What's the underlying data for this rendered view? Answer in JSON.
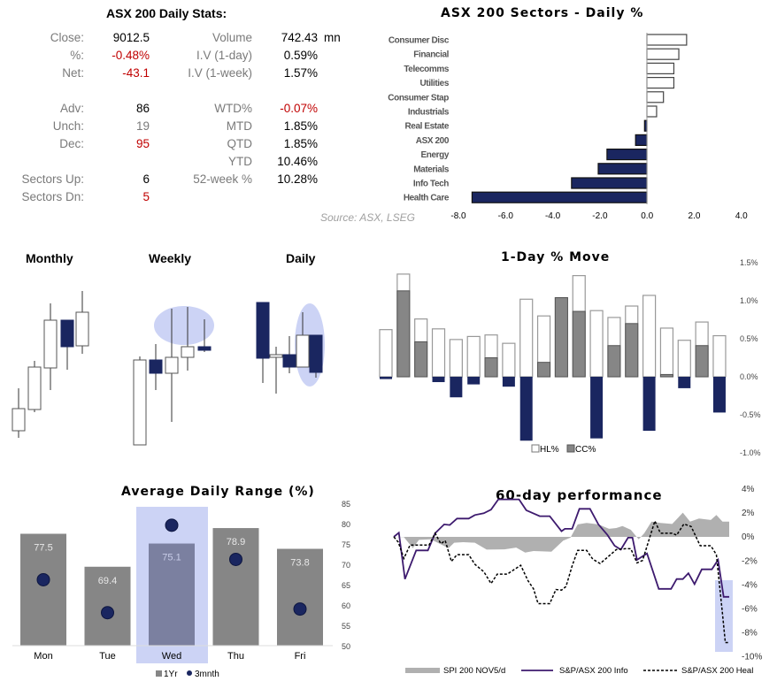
{
  "colors": {
    "navy": "#1a2660",
    "grey": "#868686",
    "highlight": "#ccd3f5",
    "red": "#c00000",
    "purple": "#3d1a6e"
  },
  "stats": {
    "title": "ASX 200 Daily Stats:",
    "left": [
      {
        "label": "Close:",
        "value": "9012.5",
        "color": "black"
      },
      {
        "label": "%:",
        "value": "-0.48%",
        "color": "red"
      },
      {
        "label": "Net:",
        "value": "-43.1",
        "color": "red"
      },
      {
        "label": "Adv:",
        "value": "86",
        "color": "black"
      },
      {
        "label": "Unch:",
        "value": "19",
        "color": "grey"
      },
      {
        "label": "Dec:",
        "value": "95",
        "color": "red"
      },
      {
        "label": "Sectors Up:",
        "value": "6",
        "color": "black"
      },
      {
        "label": "Sectors Dn:",
        "value": "5",
        "color": "red"
      }
    ],
    "right": [
      {
        "label": "Volume",
        "value": "742.43",
        "unit": "mn",
        "color": "black"
      },
      {
        "label": "I.V (1-day)",
        "value": "0.59%",
        "color": "black"
      },
      {
        "label": "I.V (1-week)",
        "value": "1.57%",
        "color": "black"
      },
      {
        "label": "WTD%",
        "value": "-0.07%",
        "color": "red"
      },
      {
        "label": "MTD",
        "value": "1.85%",
        "color": "black"
      },
      {
        "label": "QTD",
        "value": "1.85%",
        "color": "black"
      },
      {
        "label": "YTD",
        "value": "10.46%",
        "color": "black"
      },
      {
        "label": "52-week %",
        "value": "10.28%",
        "color": "black"
      }
    ]
  },
  "candles": {
    "monthly": {
      "title": "Monthly",
      "bars": [
        {
          "o": 23,
          "h": 71,
          "l": 15,
          "c": 48
        },
        {
          "o": 47,
          "h": 102,
          "l": 44,
          "c": 95
        },
        {
          "o": 94,
          "h": 167,
          "l": 69,
          "c": 148
        },
        {
          "o": 148,
          "h": 148,
          "l": 92,
          "c": 118
        },
        {
          "o": 119,
          "h": 181,
          "l": 110,
          "c": 157
        }
      ]
    },
    "weekly": {
      "title": "Weekly",
      "bars": [
        {
          "o": 7,
          "h": 107,
          "l": 7,
          "c": 103
        },
        {
          "o": 103,
          "h": 121,
          "l": 69,
          "c": 88
        },
        {
          "o": 88,
          "h": 161,
          "l": 33,
          "c": 106
        },
        {
          "o": 106,
          "h": 163,
          "l": 91,
          "c": 118
        },
        {
          "o": 118,
          "h": 149,
          "l": 112,
          "c": 114
        }
      ]
    },
    "daily": {
      "title": "Daily",
      "bars": [
        {
          "o": 168,
          "h": 168,
          "l": 77,
          "c": 105
        },
        {
          "o": 106,
          "h": 118,
          "l": 65,
          "c": 109
        },
        {
          "o": 109,
          "h": 130,
          "l": 88,
          "c": 95
        },
        {
          "o": 95,
          "h": 157,
          "l": 95,
          "c": 131
        },
        {
          "o": 131,
          "h": 131,
          "l": 83,
          "c": 89
        }
      ]
    }
  },
  "chart_data": [
    {
      "id": "sectors",
      "type": "bar",
      "orientation": "horizontal",
      "title": "ASX 200 Sectors - Daily %",
      "categories": [
        "Consumer Disc",
        "Financial",
        "Telecomms",
        "Utilities",
        "Consumer Stap",
        "Industrials",
        "Real Estate",
        "ASX 200",
        "Energy",
        "Materials",
        "Info Tech",
        "Health Care"
      ],
      "values": [
        1.68,
        1.35,
        1.14,
        1.14,
        0.7,
        0.41,
        -0.1,
        -0.48,
        -1.69,
        -2.06,
        -3.19,
        -7.4
      ],
      "xlim": [
        -8,
        4
      ],
      "xticks": [
        "-8.0",
        "-6.0",
        "-4.0",
        "-2.0",
        "0.0",
        "2.0",
        "4.0"
      ],
      "source": "Source: ASX, LSEG"
    },
    {
      "id": "oneday",
      "type": "bar",
      "title": "1-Day % Move",
      "series": [
        {
          "name": "HL%",
          "values": [
            0.62,
            1.35,
            0.76,
            0.63,
            0.49,
            0.53,
            0.55,
            0.44,
            1.02,
            0.8,
            1.04,
            1.33,
            0.87,
            0.78,
            0.93,
            1.07,
            0.64,
            0.48,
            0.72,
            0.54
          ]
        },
        {
          "name": "CC%",
          "values": [
            -0.03,
            1.13,
            0.46,
            -0.07,
            -0.27,
            -0.1,
            0.25,
            -0.13,
            -0.84,
            0.19,
            1.04,
            0.86,
            -0.81,
            0.41,
            0.7,
            -0.71,
            0.03,
            -0.15,
            0.41,
            -0.47
          ]
        }
      ],
      "ylim": [
        -1.0,
        1.5
      ],
      "yticks": [
        "1.5%",
        "1.0%",
        "0.5%",
        "0.0%",
        "-0.5%",
        "-1.0%"
      ],
      "legend": "bottom"
    },
    {
      "id": "adr",
      "type": "bar",
      "title": "Average Daily Range (%)",
      "categories": [
        "Mon",
        "Tue",
        "Wed",
        "Thu",
        "Fri"
      ],
      "series": [
        {
          "name": "1Yr",
          "values": [
            77.5,
            69.4,
            75.1,
            78.9,
            73.8
          ],
          "labels": [
            "77.5",
            "69.4",
            "75.1",
            "78.9",
            "73.8"
          ]
        },
        {
          "name": "3mnth",
          "values": [
            66.2,
            58.1,
            79.6,
            71.2,
            59.0
          ]
        }
      ],
      "highlight": "Wed",
      "ylim": [
        50,
        85
      ],
      "yticks": [
        "85",
        "80",
        "75",
        "70",
        "65",
        "60",
        "55",
        "50"
      ],
      "legend": "bottom"
    },
    {
      "id": "perf60",
      "type": "line",
      "title": "60-day performance",
      "ylim": [
        -10,
        4
      ],
      "yticks": [
        "4%",
        "2%",
        "0%",
        "-2%",
        "-4%",
        "-6%",
        "-8%",
        "-10%"
      ],
      "legend": "bottom",
      "series": [
        {
          "name": "SPI 200 NOV5/d",
          "style": "area",
          "points": [
            [
              0,
              0
            ],
            [
              1.8,
              -0.02
            ],
            [
              3.4,
              -0.94
            ],
            [
              4.5,
              -0.25
            ],
            [
              6.6,
              -0.2
            ],
            [
              8.2,
              -0.57
            ],
            [
              9.8,
              -0.94
            ],
            [
              10.8,
              -0.49
            ],
            [
              12.4,
              -0.44
            ],
            [
              14.5,
              -0.49
            ],
            [
              16.6,
              -1.06
            ],
            [
              19.8,
              -1.04
            ],
            [
              21.9,
              -0.89
            ],
            [
              23.5,
              -1.31
            ],
            [
              25.0,
              -1.18
            ],
            [
              28.2,
              -1.23
            ],
            [
              30.3,
              -0.32
            ],
            [
              31.6,
              -0.07
            ],
            [
              32.9,
              1.04
            ],
            [
              34.5,
              1.16
            ],
            [
              36.6,
              1.04
            ],
            [
              38.5,
              0.67
            ],
            [
              39.8,
              0.74
            ],
            [
              40.9,
              0.91
            ],
            [
              42.4,
              0.59
            ],
            [
              43.8,
              -0.2
            ],
            [
              44.8,
              0.3
            ],
            [
              46.1,
              1.28
            ],
            [
              47.7,
              1.16
            ],
            [
              49.8,
              1.08
            ],
            [
              51.7,
              2.02
            ],
            [
              53.0,
              1.28
            ],
            [
              54.6,
              1.53
            ],
            [
              56.7,
              1.41
            ],
            [
              57.7,
              1.82
            ],
            [
              58.8,
              1.28
            ],
            [
              60,
              1.28
            ]
          ]
        },
        {
          "name": "S&P/ASX 200 Info",
          "style": "solid",
          "points": [
            [
              0,
              0
            ],
            [
              0.9,
              0.35
            ],
            [
              2.0,
              -3.52
            ],
            [
              4.0,
              -1.13
            ],
            [
              6.1,
              -1.13
            ],
            [
              7.4,
              0.3
            ],
            [
              9.0,
              1.04
            ],
            [
              10.0,
              0.99
            ],
            [
              11.3,
              1.53
            ],
            [
              13.4,
              1.53
            ],
            [
              14.5,
              1.82
            ],
            [
              16.1,
              1.97
            ],
            [
              17.4,
              2.27
            ],
            [
              18.7,
              3.13
            ],
            [
              22.4,
              3.13
            ],
            [
              23.7,
              2.22
            ],
            [
              26.1,
              1.73
            ],
            [
              27.9,
              1.73
            ],
            [
              30.0,
              0.47
            ],
            [
              30.6,
              0.67
            ],
            [
              31.9,
              0.67
            ],
            [
              33.2,
              2.34
            ],
            [
              35.1,
              2.34
            ],
            [
              36.6,
              1.04
            ],
            [
              38.2,
              0.17
            ],
            [
              39.5,
              -0.74
            ],
            [
              40.6,
              -1.06
            ],
            [
              41.9,
              -0.07
            ],
            [
              42.7,
              -0.07
            ],
            [
              43.5,
              -1.92
            ],
            [
              45.3,
              -1.38
            ],
            [
              47.4,
              -4.34
            ],
            [
              49.6,
              -4.34
            ],
            [
              50.6,
              -3.52
            ],
            [
              51.7,
              -3.52
            ],
            [
              52.7,
              -3.03
            ],
            [
              53.8,
              -3.94
            ],
            [
              55.1,
              -2.71
            ],
            [
              56.9,
              -2.71
            ],
            [
              58.0,
              -1.92
            ],
            [
              59.0,
              -5.0
            ],
            [
              60,
              -5.0
            ]
          ]
        },
        {
          "name": "S&P/ASX 200 Heal",
          "style": "dashed",
          "points": [
            [
              0,
              0
            ],
            [
              0.8,
              -0.44
            ],
            [
              1.8,
              -1.8
            ],
            [
              2.9,
              -0.69
            ],
            [
              6.3,
              -0.69
            ],
            [
              7.4,
              0.3
            ],
            [
              8.4,
              -0.57
            ],
            [
              9.2,
              -0.32
            ],
            [
              10.3,
              -2.05
            ],
            [
              11.3,
              -1.48
            ],
            [
              13.4,
              -1.48
            ],
            [
              14.5,
              -2.29
            ],
            [
              16.1,
              -2.91
            ],
            [
              17.4,
              -3.89
            ],
            [
              18.5,
              -3.11
            ],
            [
              20.3,
              -3.11
            ],
            [
              22.7,
              -2.37
            ],
            [
              24.0,
              -3.65
            ],
            [
              25.0,
              -4.34
            ],
            [
              25.8,
              -5.57
            ],
            [
              27.9,
              -5.57
            ],
            [
              29.0,
              -4.39
            ],
            [
              30.0,
              -4.44
            ],
            [
              30.8,
              -4.14
            ],
            [
              31.9,
              -2.42
            ],
            [
              32.9,
              -1.13
            ],
            [
              34.5,
              -1.13
            ],
            [
              35.6,
              -1.87
            ],
            [
              36.9,
              -2.22
            ],
            [
              37.7,
              -1.92
            ],
            [
              39.8,
              -1.06
            ],
            [
              41.4,
              -0.99
            ],
            [
              42.4,
              -0.99
            ],
            [
              43.5,
              -2.17
            ],
            [
              44.5,
              -1.97
            ],
            [
              46.7,
              1.33
            ],
            [
              47.7,
              0.3
            ],
            [
              49.8,
              0.3
            ],
            [
              50.6,
              0.15
            ],
            [
              51.9,
              1.08
            ],
            [
              53.2,
              0.86
            ],
            [
              54.8,
              -0.74
            ],
            [
              56.7,
              -0.74
            ],
            [
              57.7,
              -1.48
            ],
            [
              58.8,
              -6.41
            ],
            [
              59.3,
              -8.82
            ],
            [
              59.8,
              -8.82
            ]
          ]
        }
      ]
    }
  ]
}
